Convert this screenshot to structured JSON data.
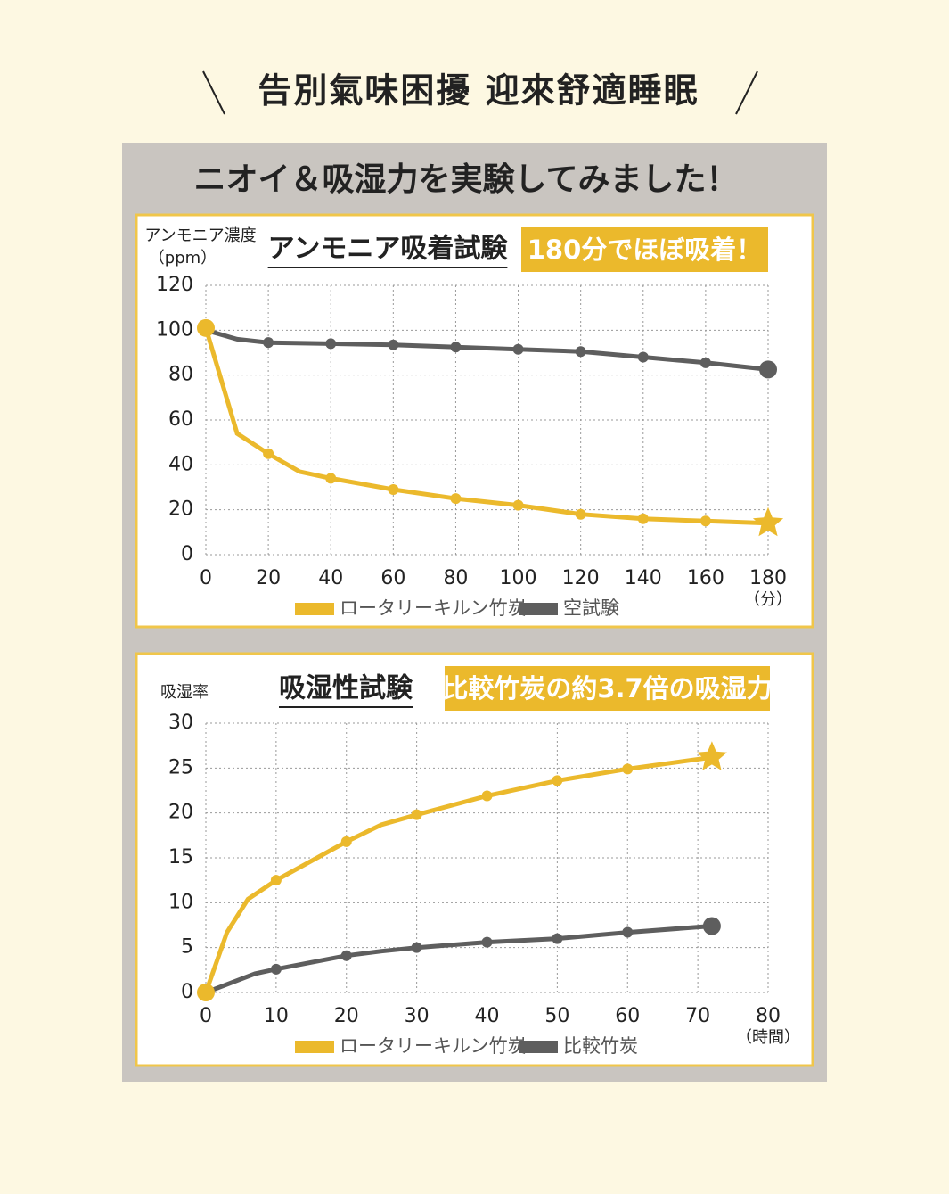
{
  "header": {
    "title": "告別氣味困擾 迎來舒適睡眠"
  },
  "panel": {
    "title": "ニオイ＆吸湿力を実験してみました！"
  },
  "chart_data": [
    {
      "type": "line",
      "title": "アンモニア吸着試験",
      "annotation": "180分でほぼ吸着！",
      "ylabel": "アンモニア濃度",
      "yunit": "（ppm）",
      "xunit": "（分）",
      "xlim": [
        0,
        180
      ],
      "xticks": [
        0,
        20,
        40,
        60,
        80,
        100,
        120,
        140,
        160,
        180
      ],
      "ylim": [
        0,
        120
      ],
      "yticks": [
        0,
        20,
        40,
        60,
        80,
        100,
        120
      ],
      "grid": true,
      "series": [
        {
          "name": "ロータリーキルン竹炭",
          "color": "#ebb92c",
          "x": [
            0,
            10,
            20,
            30,
            40,
            60,
            80,
            100,
            120,
            140,
            160,
            180
          ],
          "values": [
            101,
            54,
            45,
            37,
            34,
            29,
            25,
            22,
            18,
            16,
            15,
            14
          ]
        },
        {
          "name": "空試験",
          "color": "#5e5e5e",
          "x": [
            0,
            10,
            20,
            40,
            60,
            80,
            100,
            120,
            140,
            160,
            180
          ],
          "values": [
            100,
            96,
            94.5,
            94,
            93.5,
            92.5,
            91.5,
            90.5,
            88,
            85.5,
            82.5
          ]
        }
      ]
    },
    {
      "type": "line",
      "title": "吸湿性試験",
      "annotation": "比較竹炭の約3.7倍の吸湿力",
      "ylabel": "吸湿率",
      "xunit": "（時間）",
      "xlim": [
        0,
        80
      ],
      "xticks": [
        0,
        10,
        20,
        30,
        40,
        50,
        60,
        70,
        80
      ],
      "ylim": [
        0,
        30
      ],
      "yticks": [
        0,
        5,
        10,
        15,
        20,
        25,
        30
      ],
      "grid": true,
      "series": [
        {
          "name": "ロータリーキルン竹炭",
          "color": "#ebb92c",
          "x": [
            0,
            3,
            6,
            10,
            20,
            25,
            30,
            40,
            50,
            60,
            72
          ],
          "values": [
            0,
            6.7,
            10.4,
            12.5,
            16.8,
            18.7,
            19.8,
            21.9,
            23.6,
            24.9,
            26.2
          ]
        },
        {
          "name": "比較竹炭",
          "color": "#5e5e5e",
          "x": [
            0,
            7,
            10,
            20,
            25,
            30,
            40,
            50,
            60,
            72
          ],
          "values": [
            0,
            2.1,
            2.6,
            4.1,
            4.6,
            5,
            5.6,
            6,
            6.7,
            7.4
          ]
        }
      ]
    }
  ]
}
